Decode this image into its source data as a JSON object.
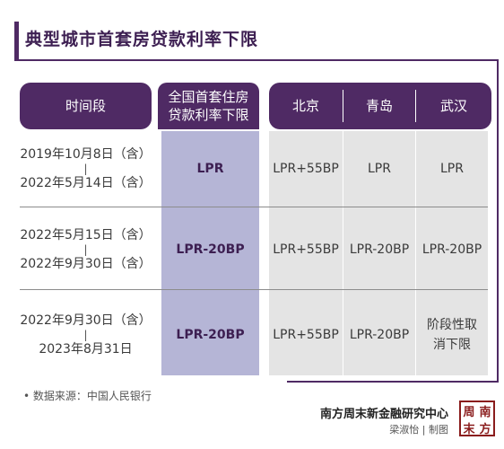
{
  "title": "典型城市首套房贷款利率下限",
  "headers": {
    "time": "时间段",
    "national": "全国首套住房贷款利率下限",
    "cities": [
      "北京",
      "青岛",
      "武汉"
    ]
  },
  "rows": [
    {
      "start": "2019年10月8日（含）",
      "separator": "|",
      "end": "2022年5月14日（含）",
      "national": "LPR",
      "beijing": "LPR+55BP",
      "qingdao": "LPR",
      "wuhan": "LPR"
    },
    {
      "start": "2022年5月15日（含）",
      "separator": "|",
      "end": "2022年9月30日（含）",
      "national": "LPR-20BP",
      "beijing": "LPR+55BP",
      "qingdao": "LPR-20BP",
      "wuhan": "LPR-20BP"
    },
    {
      "start": "2022年9月30日（含）",
      "separator": "|",
      "end": "2023年8月31日",
      "national": "LPR-20BP",
      "beijing": "LPR+55BP",
      "qingdao": "LPR-20BP",
      "wuhan": "阶段性取消下限"
    }
  ],
  "footer": {
    "source": "• 数据来源：中国人民银行",
    "credit_main": "南方周末新金融研究中心",
    "credit_sub": "梁淑怡 | 制图",
    "logo_chars": [
      "周",
      "南",
      "末",
      "方"
    ]
  },
  "colors": {
    "accent": "#4f2a64",
    "national_column": "#b5b5d6",
    "city_columns": "#e4e4e4",
    "logo": "#8a1c1c"
  }
}
